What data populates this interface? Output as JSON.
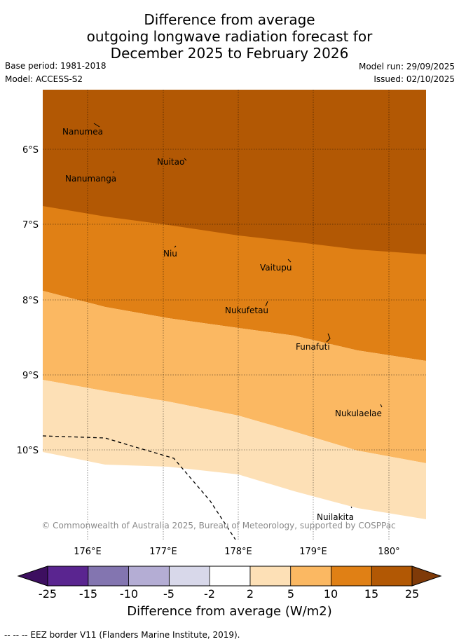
{
  "title": {
    "line1": "Difference from average",
    "line2": "outgoing longwave radiation forecast for",
    "line3": "December 2025 to February 2026"
  },
  "meta": {
    "base_period": "Base period: 1981-2018",
    "model": "Model: ACCESS-S2",
    "model_run": "Model run: 29/09/2025",
    "issued": "Issued: 02/10/2025"
  },
  "map": {
    "lat_labels": [
      "6°S",
      "7°S",
      "8°S",
      "9°S",
      "10°S"
    ],
    "lon_labels": [
      "176°E",
      "177°E",
      "178°E",
      "179°E",
      "180°"
    ],
    "islands": [
      "Nanumea",
      "Nuitao",
      "Nanumanga",
      "Niu",
      "Vaitupu",
      "Nukufetau",
      "Funafuti",
      "Nukulaelae",
      "Nuilakita"
    ],
    "copyright": "© Commonwealth of Australia 2025, Bureau of Meteorology, supported by COSPPac"
  },
  "colorbar": {
    "ticks": [
      "-25",
      "-15",
      "-10",
      "-5",
      "-2",
      "2",
      "5",
      "10",
      "15",
      "25"
    ],
    "colors": [
      "#5a2590",
      "#8375b0",
      "#b4add4",
      "#d8d8ea",
      "#ffffff",
      "#fde0b6",
      "#fbb862",
      "#e08015",
      "#b25804"
    ],
    "under_color": "#3d0f60",
    "over_color": "#7f3a08",
    "label": "Difference from average (W/m2)"
  },
  "legend": {
    "eez_text": "-- -- -- EEZ border V11 (Flanders Marine Institute, 2019)."
  }
}
